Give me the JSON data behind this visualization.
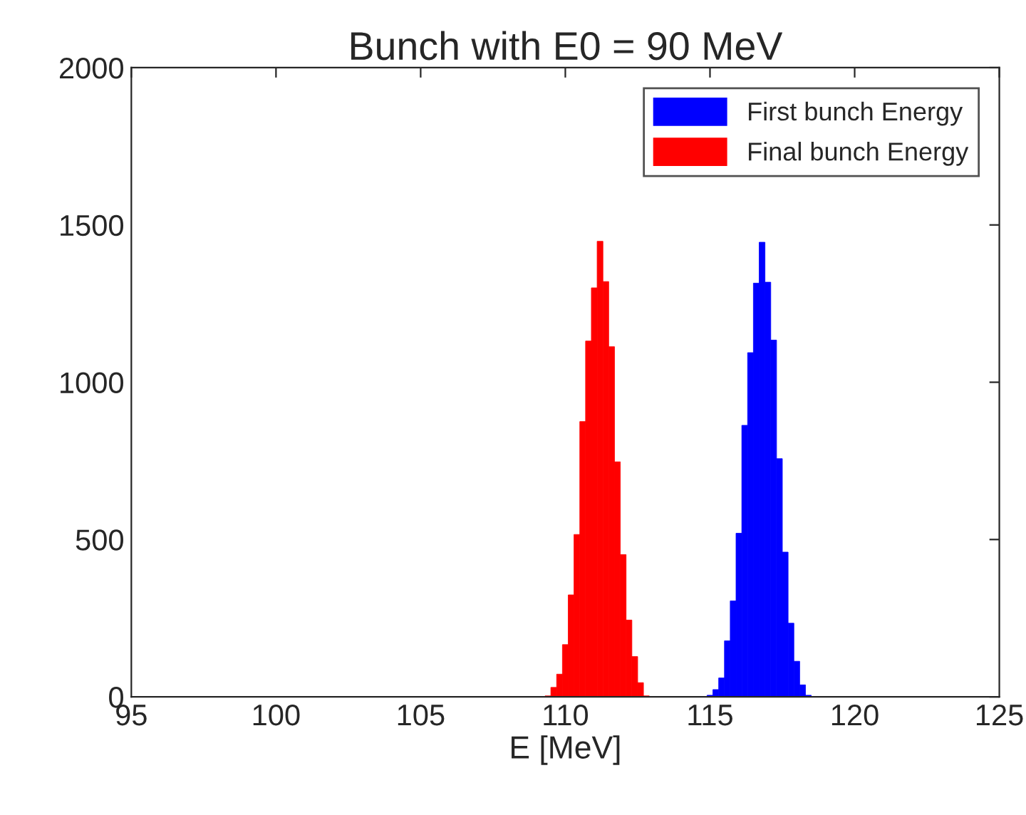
{
  "chart_data": {
    "type": "histogram",
    "title": "Bunch with E0 = 90 MeV",
    "xlabel": "E [MeV]",
    "xlim": [
      95,
      125
    ],
    "xticks": [
      95,
      100,
      105,
      110,
      115,
      120,
      125
    ],
    "ylim": [
      0,
      2000
    ],
    "yticks": [
      0,
      500,
      1000,
      1500,
      2000
    ],
    "grid": false,
    "legend": "top right",
    "bins": [
      109.3,
      109.5,
      109.7,
      109.9,
      110.1,
      110.3,
      110.5,
      110.7,
      110.9,
      111.1,
      111.3,
      111.5,
      111.7,
      111.9,
      112.1,
      112.3,
      112.5,
      112.7,
      112.9,
      113.1,
      113.3,
      113.5,
      113.7,
      113.9,
      114.1,
      114.3,
      114.5,
      114.7,
      114.9,
      115.1,
      115.3,
      115.5,
      115.7,
      115.9,
      116.1,
      116.3,
      116.5,
      116.7,
      116.9,
      117.1,
      117.3,
      117.5,
      117.7,
      117.9,
      118.1,
      118.3,
      118.5
    ],
    "series": [
      {
        "name": "First bunch Energy",
        "color": "#0000ff",
        "values": [
          null,
          null,
          null,
          null,
          null,
          null,
          null,
          null,
          null,
          null,
          null,
          null,
          null,
          null,
          null,
          null,
          null,
          null,
          null,
          null,
          null,
          null,
          null,
          null,
          null,
          null,
          null,
          null,
          5,
          23,
          60,
          178,
          305,
          520,
          863,
          1094,
          1315,
          1445,
          1318,
          1134,
          757,
          460,
          234,
          113,
          38,
          5
        ]
      },
      {
        "name": "Final bunch Energy",
        "color": "#ff0000",
        "values": [
          3,
          30,
          72,
          166,
          324,
          516,
          875,
          1131,
          1300,
          1448,
          1320,
          1113,
          747,
          452,
          244,
          128,
          45,
          3,
          null,
          null,
          null,
          null,
          null,
          null,
          null,
          null,
          null,
          null,
          null,
          null,
          null,
          null,
          null,
          null,
          null,
          null,
          null,
          null,
          null,
          null,
          null,
          null,
          null,
          null,
          null,
          null
        ]
      }
    ]
  }
}
